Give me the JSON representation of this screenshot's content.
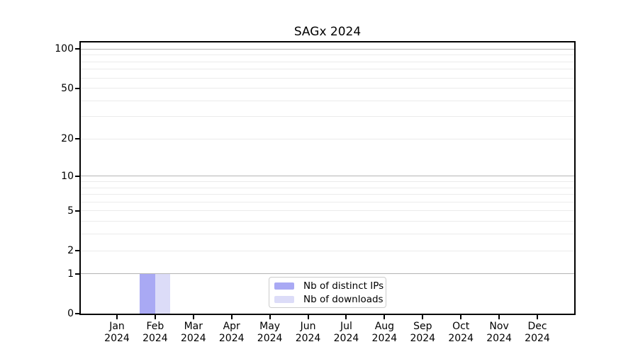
{
  "title": "SAGx 2024",
  "chart_data": {
    "type": "bar",
    "title": "SAGx 2024",
    "categories": [
      {
        "label": "Jan",
        "sub": "2024"
      },
      {
        "label": "Feb",
        "sub": "2024"
      },
      {
        "label": "Mar",
        "sub": "2024"
      },
      {
        "label": "Apr",
        "sub": "2024"
      },
      {
        "label": "May",
        "sub": "2024"
      },
      {
        "label": "Jun",
        "sub": "2024"
      },
      {
        "label": "Jul",
        "sub": "2024"
      },
      {
        "label": "Aug",
        "sub": "2024"
      },
      {
        "label": "Sep",
        "sub": "2024"
      },
      {
        "label": "Oct",
        "sub": "2024"
      },
      {
        "label": "Nov",
        "sub": "2024"
      },
      {
        "label": "Dec",
        "sub": "2024"
      }
    ],
    "series": [
      {
        "name": "Nb of distinct IPs",
        "color": "#a9a9f4",
        "values": [
          0,
          1,
          0,
          0,
          0,
          0,
          0,
          0,
          0,
          0,
          0,
          0
        ]
      },
      {
        "name": "Nb of downloads",
        "color": "#dcdcf8",
        "values": [
          0,
          1,
          0,
          0,
          0,
          0,
          0,
          0,
          0,
          0,
          0,
          0
        ]
      }
    ],
    "xlabel": "",
    "ylabel": "",
    "yscale": "log1p (y position proportional to log10(value+1), linear near 0)",
    "ylim": [
      0,
      113
    ],
    "y_tick_labels": [
      0,
      1,
      2,
      5,
      10,
      20,
      50,
      100
    ],
    "y_major_gridlines": [
      1,
      10,
      100
    ],
    "y_minor_gridlines": [
      2,
      3,
      4,
      5,
      6,
      7,
      8,
      9,
      20,
      30,
      40,
      50,
      60,
      70,
      80,
      90
    ],
    "grid": true,
    "legend_position": "lower center"
  },
  "colors": {
    "background": "#ffffff",
    "spine": "#000000",
    "major_grid": "#b4b4b4",
    "minor_grid": "#ebebeb",
    "legend_border": "#cccccc",
    "series_1": "#a9a9f4",
    "series_2": "#dcdcf8"
  }
}
